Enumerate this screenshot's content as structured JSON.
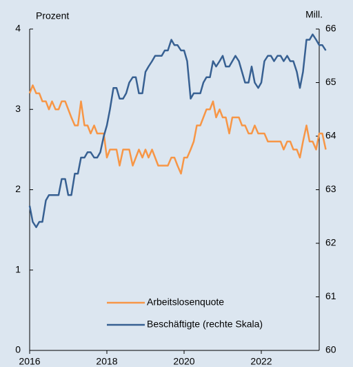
{
  "chart_data": {
    "type": "line",
    "y_label": "Prozent",
    "y2_label": "Mill.",
    "x": [
      2016.0,
      2016.08,
      2016.17,
      2016.25,
      2016.33,
      2016.42,
      2016.5,
      2016.58,
      2016.67,
      2016.75,
      2016.83,
      2016.92,
      2017.0,
      2017.08,
      2017.17,
      2017.25,
      2017.33,
      2017.42,
      2017.5,
      2017.58,
      2017.67,
      2017.75,
      2017.83,
      2017.92,
      2018.0,
      2018.08,
      2018.17,
      2018.25,
      2018.33,
      2018.42,
      2018.5,
      2018.58,
      2018.67,
      2018.75,
      2018.83,
      2018.92,
      2019.0,
      2019.08,
      2019.17,
      2019.25,
      2019.33,
      2019.42,
      2019.5,
      2019.58,
      2019.67,
      2019.75,
      2019.83,
      2019.92,
      2020.0,
      2020.08,
      2020.17,
      2020.25,
      2020.33,
      2020.42,
      2020.5,
      2020.58,
      2020.67,
      2020.75,
      2020.83,
      2020.92,
      2021.0,
      2021.08,
      2021.17,
      2021.25,
      2021.33,
      2021.42,
      2021.5,
      2021.58,
      2021.67,
      2021.75,
      2021.83,
      2021.92,
      2022.0,
      2022.08,
      2022.17,
      2022.25,
      2022.33,
      2022.42,
      2022.5,
      2022.58,
      2022.67,
      2022.75,
      2022.83,
      2022.92,
      2023.0,
      2023.08,
      2023.17,
      2023.25,
      2023.33,
      2023.42,
      2023.5,
      2023.58,
      2023.67
    ],
    "series": [
      {
        "name": "Arbeitslosenquote",
        "color": "#f79646",
        "values": [
          3.2,
          3.3,
          3.2,
          3.2,
          3.1,
          3.1,
          3.0,
          3.1,
          3.0,
          3.0,
          3.1,
          3.1,
          3.0,
          2.9,
          2.8,
          2.8,
          3.1,
          2.8,
          2.8,
          2.7,
          2.8,
          2.7,
          2.7,
          2.7,
          2.4,
          2.5,
          2.5,
          2.5,
          2.3,
          2.5,
          2.5,
          2.5,
          2.3,
          2.4,
          2.5,
          2.4,
          2.5,
          2.4,
          2.5,
          2.4,
          2.3,
          2.3,
          2.3,
          2.3,
          2.4,
          2.4,
          2.3,
          2.2,
          2.4,
          2.4,
          2.5,
          2.6,
          2.8,
          2.8,
          2.9,
          3.0,
          3.0,
          3.1,
          2.9,
          3.0,
          2.9,
          2.9,
          2.7,
          2.9,
          2.9,
          2.9,
          2.8,
          2.8,
          2.7,
          2.7,
          2.8,
          2.7,
          2.7,
          2.7,
          2.6,
          2.6,
          2.6,
          2.6,
          2.6,
          2.5,
          2.6,
          2.6,
          2.5,
          2.5,
          2.4,
          2.6,
          2.8,
          2.6,
          2.6,
          2.5,
          2.7,
          2.7,
          2.5
        ]
      },
      {
        "name": "Beschäftigte (rechte Skala)",
        "color": "#376092",
        "axis": "y2",
        "values": [
          62.7,
          62.4,
          62.3,
          62.4,
          62.4,
          62.8,
          62.9,
          62.9,
          62.9,
          62.9,
          63.2,
          63.2,
          62.9,
          62.9,
          63.3,
          63.3,
          63.6,
          63.6,
          63.7,
          63.7,
          63.6,
          63.6,
          63.7,
          64.0,
          64.2,
          64.5,
          64.9,
          64.9,
          64.7,
          64.7,
          64.8,
          65.0,
          65.1,
          65.1,
          64.8,
          64.8,
          65.2,
          65.3,
          65.4,
          65.5,
          65.5,
          65.5,
          65.6,
          65.6,
          65.8,
          65.7,
          65.7,
          65.6,
          65.6,
          65.4,
          64.7,
          64.8,
          64.8,
          64.8,
          65.0,
          65.1,
          65.1,
          65.4,
          65.3,
          65.4,
          65.5,
          65.3,
          65.3,
          65.4,
          65.5,
          65.4,
          65.2,
          65.0,
          65.0,
          65.3,
          65.0,
          64.9,
          65.0,
          65.4,
          65.5,
          65.5,
          65.4,
          65.5,
          65.5,
          65.4,
          65.5,
          65.4,
          65.4,
          65.2,
          64.9,
          65.2,
          65.8,
          65.8,
          65.9,
          65.8,
          65.7,
          65.7,
          65.6
        ]
      }
    ],
    "xlim": [
      2016,
      2023.5
    ],
    "xticks": [
      2016,
      2018,
      2020,
      2022
    ],
    "ylim": [
      0,
      4
    ],
    "yticks": [
      0,
      1,
      2,
      3,
      4
    ],
    "y2lim": [
      60,
      66
    ],
    "y2ticks": [
      60,
      61,
      62,
      63,
      64,
      65,
      66
    ],
    "grid": false,
    "legend": "bottom"
  }
}
